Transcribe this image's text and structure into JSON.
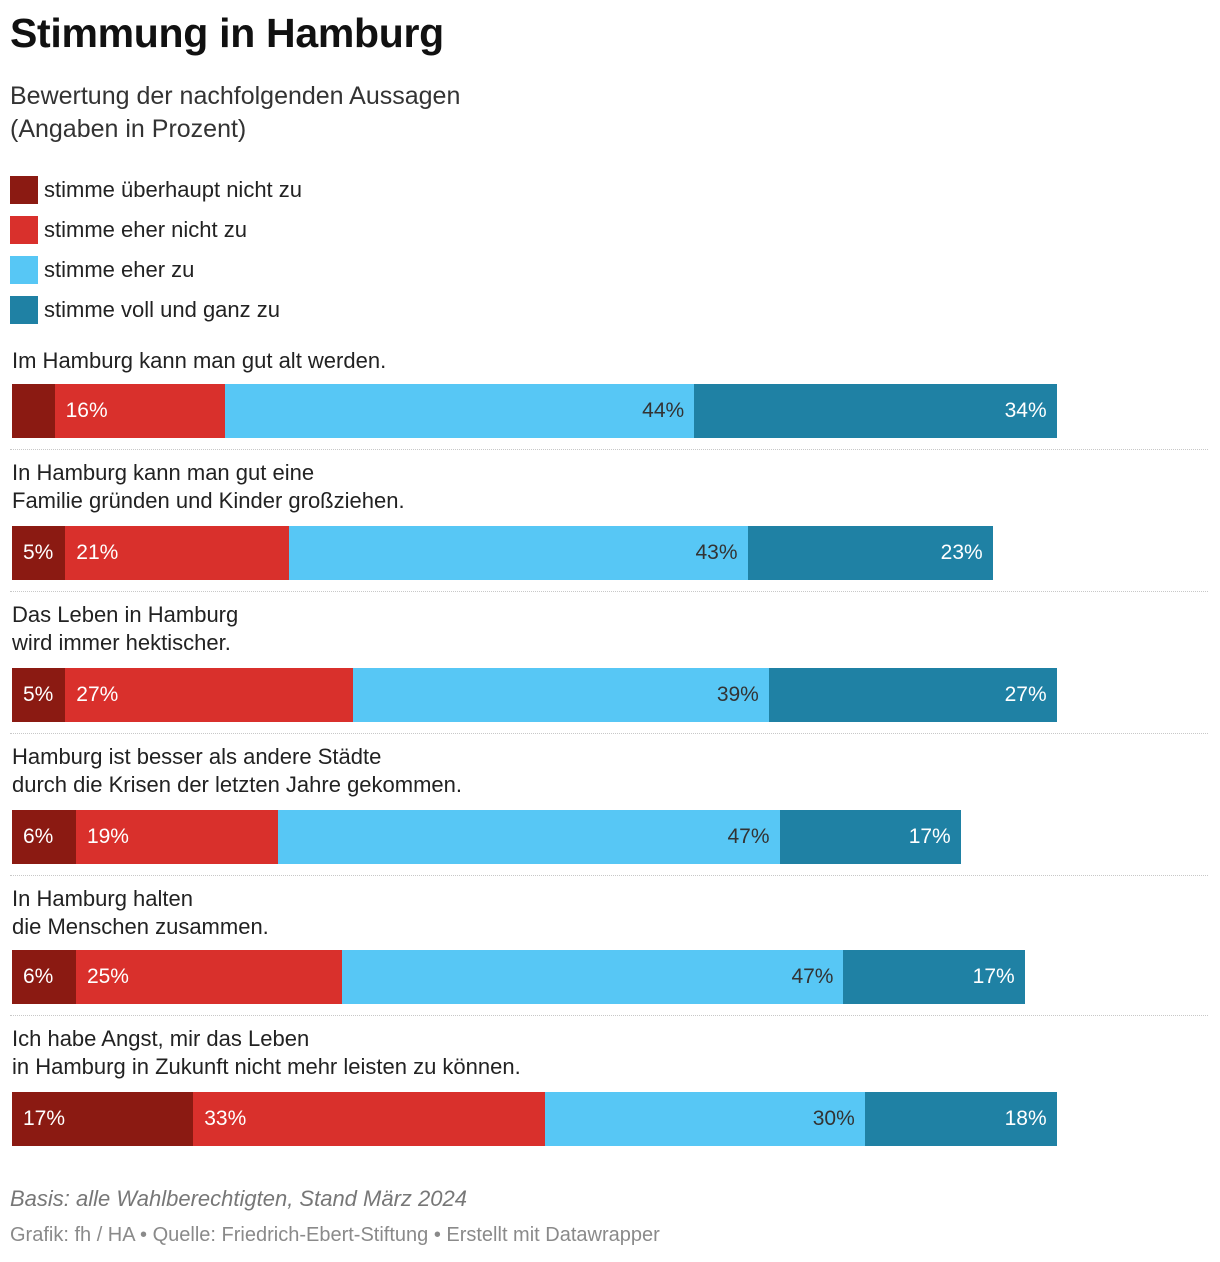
{
  "title": "Stimmung in Hamburg",
  "subtitle": "Bewertung der nachfolgenden Aussagen\n(Angaben in Prozent)",
  "colors": {
    "stimme_ueberhaupt_nicht_zu": "#8b1a12",
    "stimme_eher_nicht_zu": "#d9302c",
    "stimme_eher_zu": "#57c7f5",
    "stimme_voll_und_ganz_zu": "#1f81a4"
  },
  "chart_data": {
    "type": "bar",
    "orientation": "horizontal",
    "stacked": true,
    "legend_position": "top-left",
    "value_suffix": "%",
    "categories": [
      "Im Hamburg kann man gut alt werden.",
      "In Hamburg kann man gut eine\nFamilie gründen und Kinder großziehen.",
      "Das Leben in Hamburg\nwird immer hektischer.",
      "Hamburg ist besser als andere Städte\ndurch die Krisen der letzten Jahre gekommen.",
      "In Hamburg halten\ndie Menschen zusammen.",
      "Ich habe Angst, mir das Leben\nin Hamburg in Zukunft nicht mehr leisten zu können."
    ],
    "series": [
      {
        "name": "stimme überhaupt nicht zu",
        "color": "#8b1a12",
        "values": [
          4,
          5,
          5,
          6,
          6,
          17
        ],
        "labels": [
          "",
          "5%",
          "5%",
          "6%",
          "6%",
          "17%"
        ]
      },
      {
        "name": "stimme eher nicht zu",
        "color": "#d9302c",
        "values": [
          16,
          21,
          27,
          19,
          25,
          33
        ],
        "labels": [
          "16%",
          "21%",
          "27%",
          "19%",
          "25%",
          "33%"
        ]
      },
      {
        "name": "stimme eher zu",
        "color": "#57c7f5",
        "values": [
          44,
          43,
          39,
          47,
          47,
          30
        ],
        "labels": [
          "44%",
          "43%",
          "39%",
          "47%",
          "47%",
          "30%"
        ]
      },
      {
        "name": "stimme voll und ganz zu",
        "color": "#1f81a4",
        "values": [
          34,
          23,
          27,
          17,
          17,
          18
        ],
        "labels": [
          "34%",
          "23%",
          "27%",
          "17%",
          "17%",
          "18%"
        ]
      }
    ]
  },
  "note": "Basis: alle Wahlberechtigten, Stand März 2024",
  "footer": "Grafik: fh / HA • Quelle: Friedrich-Ebert-Stiftung • Erstellt mit Datawrapper"
}
